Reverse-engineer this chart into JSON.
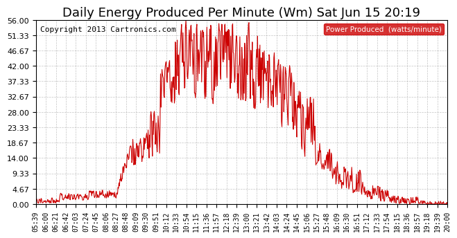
{
  "title": "Daily Energy Produced Per Minute (Wm) Sat Jun 15 20:19",
  "copyright": "Copyright 2013 Cartronics.com",
  "legend_label": "Power Produced  (watts/minute)",
  "legend_bg": "#cc0000",
  "legend_fg": "#ffffff",
  "line_color": "#cc0000",
  "bg_color": "#ffffff",
  "grid_color": "#aaaaaa",
  "yticks": [
    0.0,
    4.67,
    9.33,
    14.0,
    18.67,
    23.33,
    28.0,
    32.67,
    37.33,
    42.0,
    46.67,
    51.33,
    56.0
  ],
  "ylim": [
    0,
    56.0
  ],
  "title_fontsize": 13,
  "copyright_fontsize": 8,
  "xtick_fontsize": 7,
  "ytick_fontsize": 8
}
